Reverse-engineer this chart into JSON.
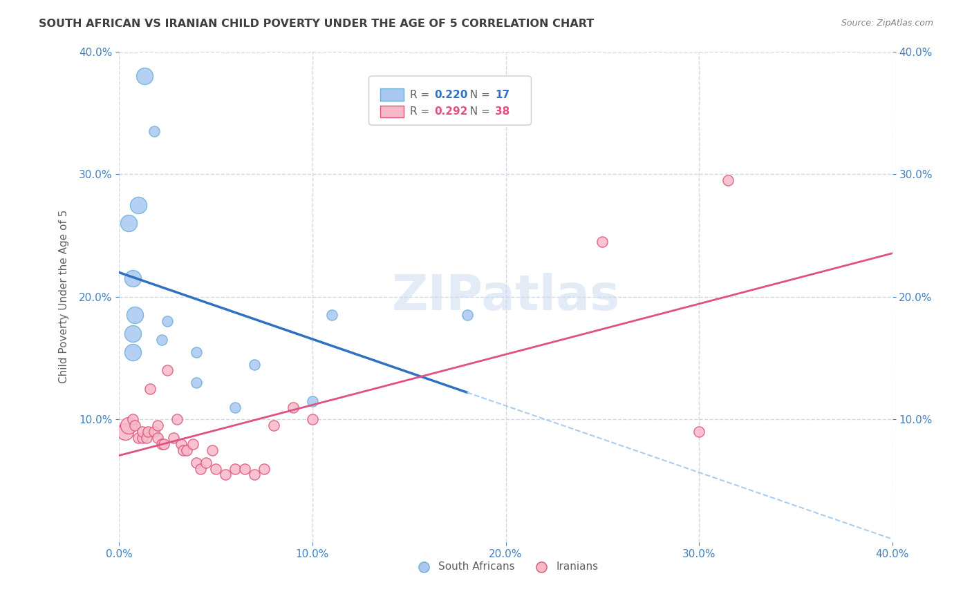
{
  "title": "SOUTH AFRICAN VS IRANIAN CHILD POVERTY UNDER THE AGE OF 5 CORRELATION CHART",
  "source": "Source: ZipAtlas.com",
  "ylabel": "Child Poverty Under the Age of 5",
  "xlim": [
    0.0,
    0.4
  ],
  "ylim": [
    0.0,
    0.4
  ],
  "xticks": [
    0.0,
    0.1,
    0.2,
    0.3,
    0.4
  ],
  "yticks": [
    0.1,
    0.2,
    0.3,
    0.4
  ],
  "xticklabels": [
    "0.0%",
    "10.0%",
    "20.0%",
    "30.0%",
    "40.0%"
  ],
  "yticklabels": [
    "10.0%",
    "20.0%",
    "30.0%",
    "40.0%"
  ],
  "watermark": "ZIPatlas",
  "legend_blue_r": "0.220",
  "legend_blue_n": "17",
  "legend_pink_r": "0.292",
  "legend_pink_n": "38",
  "blue_color": "#a8c8f0",
  "blue_edge_color": "#6baed6",
  "pink_color": "#f8b8c8",
  "pink_edge_color": "#d9537a",
  "trendline_blue_color": "#3070c0",
  "trendline_pink_color": "#e05080",
  "trendline_blue_dash_color": "#aaccee",
  "grid_color": "#d0d8e8",
  "background_color": "#ffffff",
  "title_color": "#404040",
  "source_color": "#808080",
  "axis_label_color": "#606060",
  "tick_color": "#4080c0",
  "south_africans_x": [
    0.013,
    0.018,
    0.01,
    0.005,
    0.007,
    0.008,
    0.007,
    0.007,
    0.025,
    0.022,
    0.04,
    0.07,
    0.04,
    0.06,
    0.1,
    0.11,
    0.18
  ],
  "south_africans_y": [
    0.38,
    0.335,
    0.275,
    0.26,
    0.215,
    0.185,
    0.17,
    0.155,
    0.18,
    0.165,
    0.155,
    0.145,
    0.13,
    0.11,
    0.115,
    0.185,
    0.185
  ],
  "iranians_x": [
    0.003,
    0.005,
    0.007,
    0.008,
    0.01,
    0.012,
    0.012,
    0.014,
    0.015,
    0.016,
    0.018,
    0.02,
    0.02,
    0.022,
    0.023,
    0.025,
    0.028,
    0.03,
    0.032,
    0.033,
    0.035,
    0.038,
    0.04,
    0.042,
    0.045,
    0.048,
    0.05,
    0.055,
    0.06,
    0.065,
    0.07,
    0.075,
    0.08,
    0.09,
    0.1,
    0.25,
    0.3,
    0.315
  ],
  "iranians_y": [
    0.09,
    0.095,
    0.1,
    0.095,
    0.085,
    0.085,
    0.09,
    0.085,
    0.09,
    0.125,
    0.09,
    0.095,
    0.085,
    0.08,
    0.08,
    0.14,
    0.085,
    0.1,
    0.08,
    0.075,
    0.075,
    0.08,
    0.065,
    0.06,
    0.065,
    0.075,
    0.06,
    0.055,
    0.06,
    0.06,
    0.055,
    0.06,
    0.095,
    0.11,
    0.1,
    0.245,
    0.09,
    0.295
  ],
  "marker_size": 120,
  "marker_size_large": 300
}
